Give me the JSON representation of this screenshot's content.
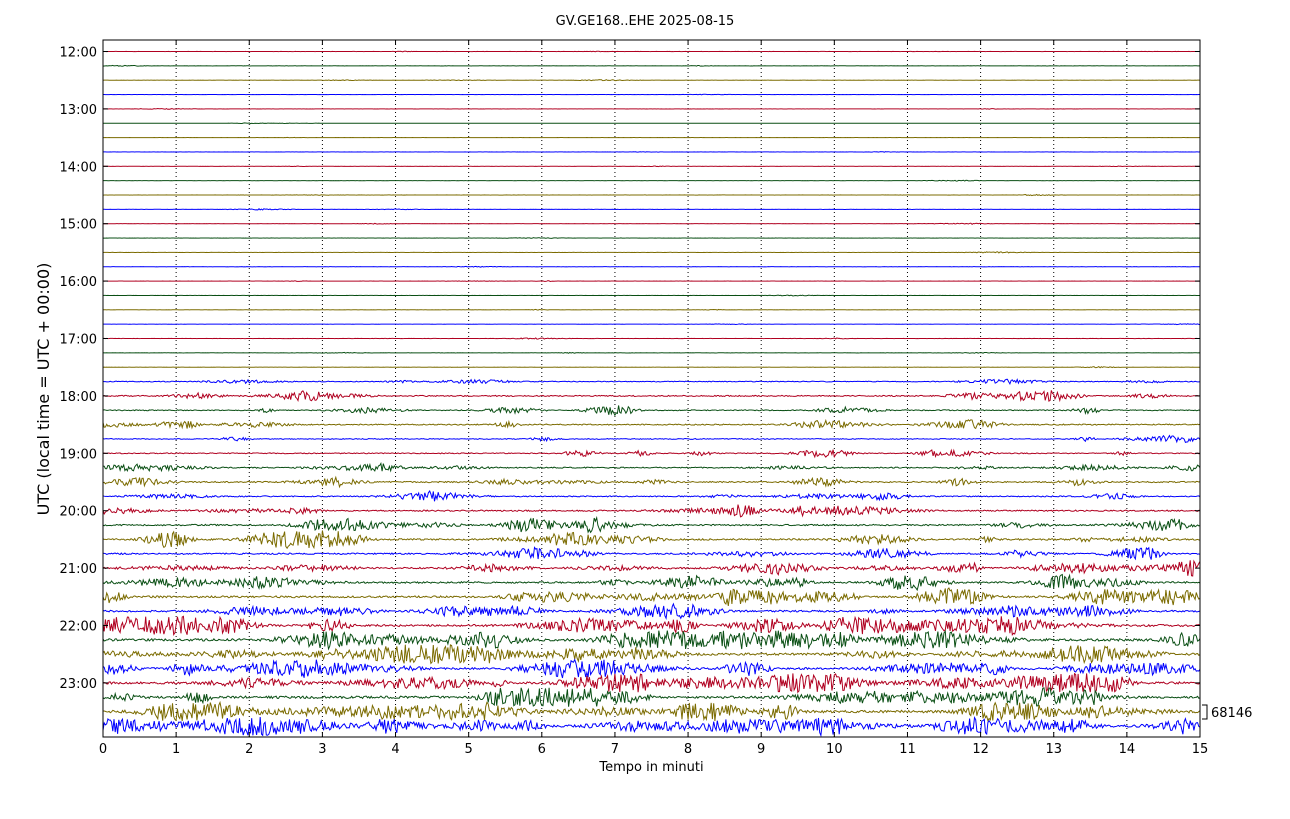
{
  "chart_data": {
    "type": "line",
    "title": "GV.GE168..EHE 2025-08-15",
    "xlabel": "Tempo in minuti",
    "ylabel": "UTC (local time = UTC + 00:00)",
    "xlim": [
      0,
      15
    ],
    "x_ticks": [
      "0",
      "1",
      "2",
      "3",
      "4",
      "5",
      "6",
      "7",
      "8",
      "9",
      "10",
      "11",
      "12",
      "13",
      "14",
      "15"
    ],
    "y_ticks": [
      "12:00",
      "13:00",
      "14:00",
      "15:00",
      "16:00",
      "17:00",
      "18:00",
      "19:00",
      "20:00",
      "21:00",
      "22:00",
      "23:00"
    ],
    "trace_start": "12:00",
    "trace_interval_minutes": 15,
    "trace_count": 48,
    "trace_colors": [
      "#b00020",
      "#0a4f14",
      "#7b6b00",
      "#0000ff"
    ],
    "scale_label": "68146",
    "grid": "vertical dotted lines at each minute",
    "trace_activity": [
      0.05,
      0.06,
      0.06,
      0.05,
      0.05,
      0.04,
      0.04,
      0.04,
      0.04,
      0.05,
      0.05,
      0.06,
      0.06,
      0.07,
      0.06,
      0.06,
      0.05,
      0.05,
      0.05,
      0.05,
      0.06,
      0.06,
      0.07,
      0.25,
      0.35,
      0.3,
      0.35,
      0.25,
      0.3,
      0.35,
      0.4,
      0.35,
      0.4,
      0.45,
      0.5,
      0.45,
      0.5,
      0.55,
      0.6,
      0.55,
      0.65,
      0.75,
      0.7,
      0.65,
      0.7,
      0.75,
      0.8,
      0.8
    ]
  }
}
